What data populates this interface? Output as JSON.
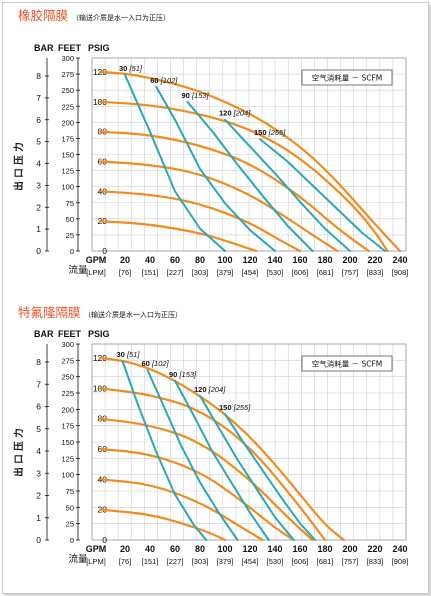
{
  "colors": {
    "head_curve": "#f08c1e",
    "air_curve": "#2aa8b8",
    "title": "#e8552a",
    "grid": "#cfcfcf"
  },
  "axis_headers": {
    "bar": "BAR",
    "feet": "FEET",
    "psig": "PSIG"
  },
  "vertical_label": [
    "出",
    "口",
    "压",
    "力"
  ],
  "flow_label": "流量",
  "gpm_label": "GPM",
  "lpm_label": "[LPM]",
  "legend_text": "空气消耗量 － SCFM",
  "bar_ticks": [
    "8",
    "7",
    "6",
    "5",
    "4",
    "3",
    "2",
    "1",
    "0"
  ],
  "feet_ticks": [
    "300",
    "275",
    "250",
    "225",
    "200",
    "175",
    "150",
    "125",
    "100",
    "75",
    "50",
    "25",
    "0"
  ],
  "psig_ticks": [
    "120",
    "100",
    "80",
    "60",
    "40",
    "20",
    "0"
  ],
  "gpm_ticks": [
    "20",
    "40",
    "60",
    "80",
    "100",
    "120",
    "140",
    "160",
    "180",
    "200",
    "220",
    "240"
  ],
  "lpm_ticks": [
    "[76]",
    "[151]",
    "[227]",
    "[303]",
    "[379]",
    "[454]",
    "[530]",
    "[606]",
    "[681]",
    "[757]",
    "[833]",
    "[908]"
  ],
  "charts": [
    {
      "title": "橡胶隔膜",
      "subtitle": "（输送介质是水一入口为正压）",
      "chart_data": {
        "type": "line",
        "x_unit": "GPM",
        "y_unit": "PSIG",
        "xlim": [
          0,
          240
        ],
        "ylim": [
          0,
          130
        ],
        "head_curves": [
          {
            "x": [
              0,
              20,
              40,
              60,
              80,
              100,
              120,
              140,
              160,
              180,
              200,
              220,
              240
            ],
            "y": [
              120,
              119,
              116,
              112,
              107,
              100,
              92,
              82,
              70,
              55,
              37,
              18,
              0
            ]
          },
          {
            "x": [
              0,
              40,
              80,
              120,
              160,
              200,
              220,
              230
            ],
            "y": [
              100,
              98,
              92,
              82,
              63,
              33,
              13,
              0
            ]
          },
          {
            "x": [
              0,
              40,
              80,
              120,
              160,
              190,
              215
            ],
            "y": [
              80,
              78,
              71,
              59,
              37,
              15,
              0
            ]
          },
          {
            "x": [
              0,
              40,
              80,
              120,
              150,
              175,
              190
            ],
            "y": [
              60,
              58,
              52,
              38,
              22,
              8,
              0
            ]
          },
          {
            "x": [
              0,
              40,
              80,
              120,
              140,
              160
            ],
            "y": [
              40,
              38,
              32,
              19,
              9,
              0
            ]
          },
          {
            "x": [
              0,
              40,
              80,
              100,
              125
            ],
            "y": [
              20,
              18,
              12,
              7,
              0
            ]
          }
        ],
        "air_curves": [
          {
            "name": "30 [51]",
            "x": [
              20,
              40,
              60,
              80,
              100
            ],
            "y": [
              118,
              80,
              40,
              15,
              0
            ]
          },
          {
            "name": "60 [102]",
            "x": [
              45,
              60,
              80,
              100,
              120,
              140
            ],
            "y": [
              110,
              88,
              55,
              32,
              14,
              0
            ]
          },
          {
            "name": "90 [153]",
            "x": [
              70,
              90,
              110,
              130,
              150,
              170
            ],
            "y": [
              100,
              80,
              58,
              37,
              17,
              0
            ]
          },
          {
            "name": "120 [204]",
            "x": [
              100,
              120,
              140,
              160,
              180,
              200
            ],
            "y": [
              88,
              70,
              52,
              33,
              15,
              0
            ]
          },
          {
            "name": "150 [255]",
            "x": [
              128,
              150,
              170,
              190,
              210,
              228
            ],
            "y": [
              75,
              60,
              44,
              28,
              12,
              0
            ]
          }
        ]
      }
    },
    {
      "title": "特氟隆隔膜",
      "subtitle": "（输送介质是水一入口为正压）",
      "chart_data": {
        "type": "line",
        "x_unit": "GPM",
        "y_unit": "PSIG",
        "xlim": [
          0,
          240
        ],
        "ylim": [
          0,
          130
        ],
        "head_curves": [
          {
            "x": [
              0,
              20,
              40,
              60,
              80,
              100,
              120,
              140,
              160,
              180,
              195
            ],
            "y": [
              120,
              118,
              113,
              105,
              95,
              83,
              68,
              50,
              30,
              10,
              0
            ]
          },
          {
            "x": [
              0,
              40,
              80,
              120,
              160,
              180
            ],
            "y": [
              100,
              96,
              86,
              62,
              22,
              0
            ]
          },
          {
            "x": [
              0,
              40,
              80,
              120,
              150,
              170
            ],
            "y": [
              80,
              76,
              65,
              40,
              15,
              0
            ]
          },
          {
            "x": [
              0,
              40,
              80,
              110,
              140,
              155
            ],
            "y": [
              60,
              57,
              45,
              28,
              8,
              0
            ]
          },
          {
            "x": [
              0,
              40,
              80,
              110,
              130
            ],
            "y": [
              40,
              37,
              25,
              10,
              0
            ]
          },
          {
            "x": [
              0,
              40,
              70,
              90,
              100
            ],
            "y": [
              20,
              17,
              10,
              4,
              0
            ]
          }
        ],
        "air_curves": [
          {
            "name": "30 [51]",
            "x": [
              18,
              30,
              45,
              60,
              75,
              85
            ],
            "y": [
              118,
              90,
              58,
              30,
              10,
              0
            ]
          },
          {
            "name": "60 [102]",
            "x": [
              38,
              50,
              65,
              80,
              95,
              110
            ],
            "y": [
              112,
              90,
              62,
              38,
              18,
              0
            ]
          },
          {
            "name": "90 [153]",
            "x": [
              60,
              75,
              90,
              105,
              120,
              135
            ],
            "y": [
              105,
              82,
              58,
              38,
              18,
              0
            ]
          },
          {
            "name": "120 [204]",
            "x": [
              80,
              95,
              110,
              125,
              140,
              155
            ],
            "y": [
              95,
              74,
              53,
              34,
              15,
              0
            ]
          },
          {
            "name": "150 [255]",
            "x": [
              100,
              115,
              130,
              145,
              160,
              172
            ],
            "y": [
              83,
              64,
              46,
              28,
              11,
              0
            ]
          }
        ]
      }
    }
  ]
}
